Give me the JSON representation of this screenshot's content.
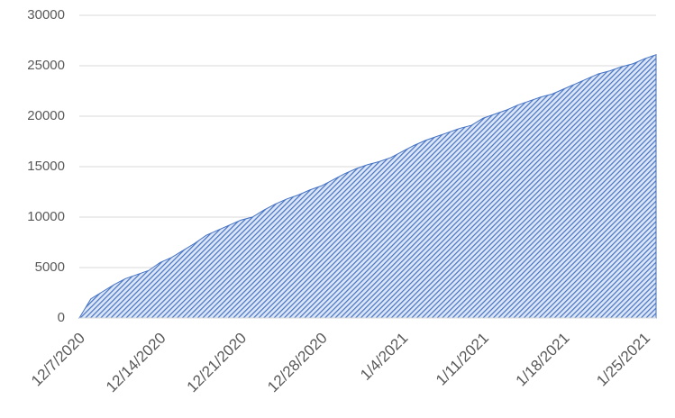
{
  "chart_data": {
    "type": "area",
    "categories": [
      "12/7/2020",
      null,
      null,
      null,
      null,
      null,
      null,
      "12/14/2020",
      null,
      null,
      null,
      null,
      null,
      null,
      "12/21/2020",
      null,
      null,
      null,
      null,
      null,
      null,
      "12/28/2020",
      null,
      null,
      null,
      null,
      null,
      null,
      "1/4/2021",
      null,
      null,
      null,
      null,
      null,
      null,
      "1/11/2021",
      null,
      null,
      null,
      null,
      null,
      null,
      "1/18/2021",
      null,
      null,
      null,
      null,
      null,
      null,
      "1/25/2021",
      null
    ],
    "values": [
      0,
      1900,
      2600,
      3300,
      3900,
      4300,
      4700,
      5500,
      6000,
      6700,
      7400,
      8200,
      8700,
      9200,
      9700,
      10000,
      10700,
      11300,
      11800,
      12200,
      12700,
      13100,
      13700,
      14300,
      14800,
      15200,
      15500,
      15900,
      16500,
      17100,
      17600,
      18000,
      18400,
      18800,
      19100,
      19800,
      20200,
      20600,
      21100,
      21500,
      21900,
      22200,
      22700,
      23200,
      23700,
      24200,
      24500,
      24900,
      25200,
      25700,
      26100
    ],
    "color": "#4472c4",
    "ylim": [
      0,
      30000
    ],
    "yticks": [
      0,
      5000,
      10000,
      15000,
      20000,
      25000,
      30000
    ],
    "grid": true
  }
}
